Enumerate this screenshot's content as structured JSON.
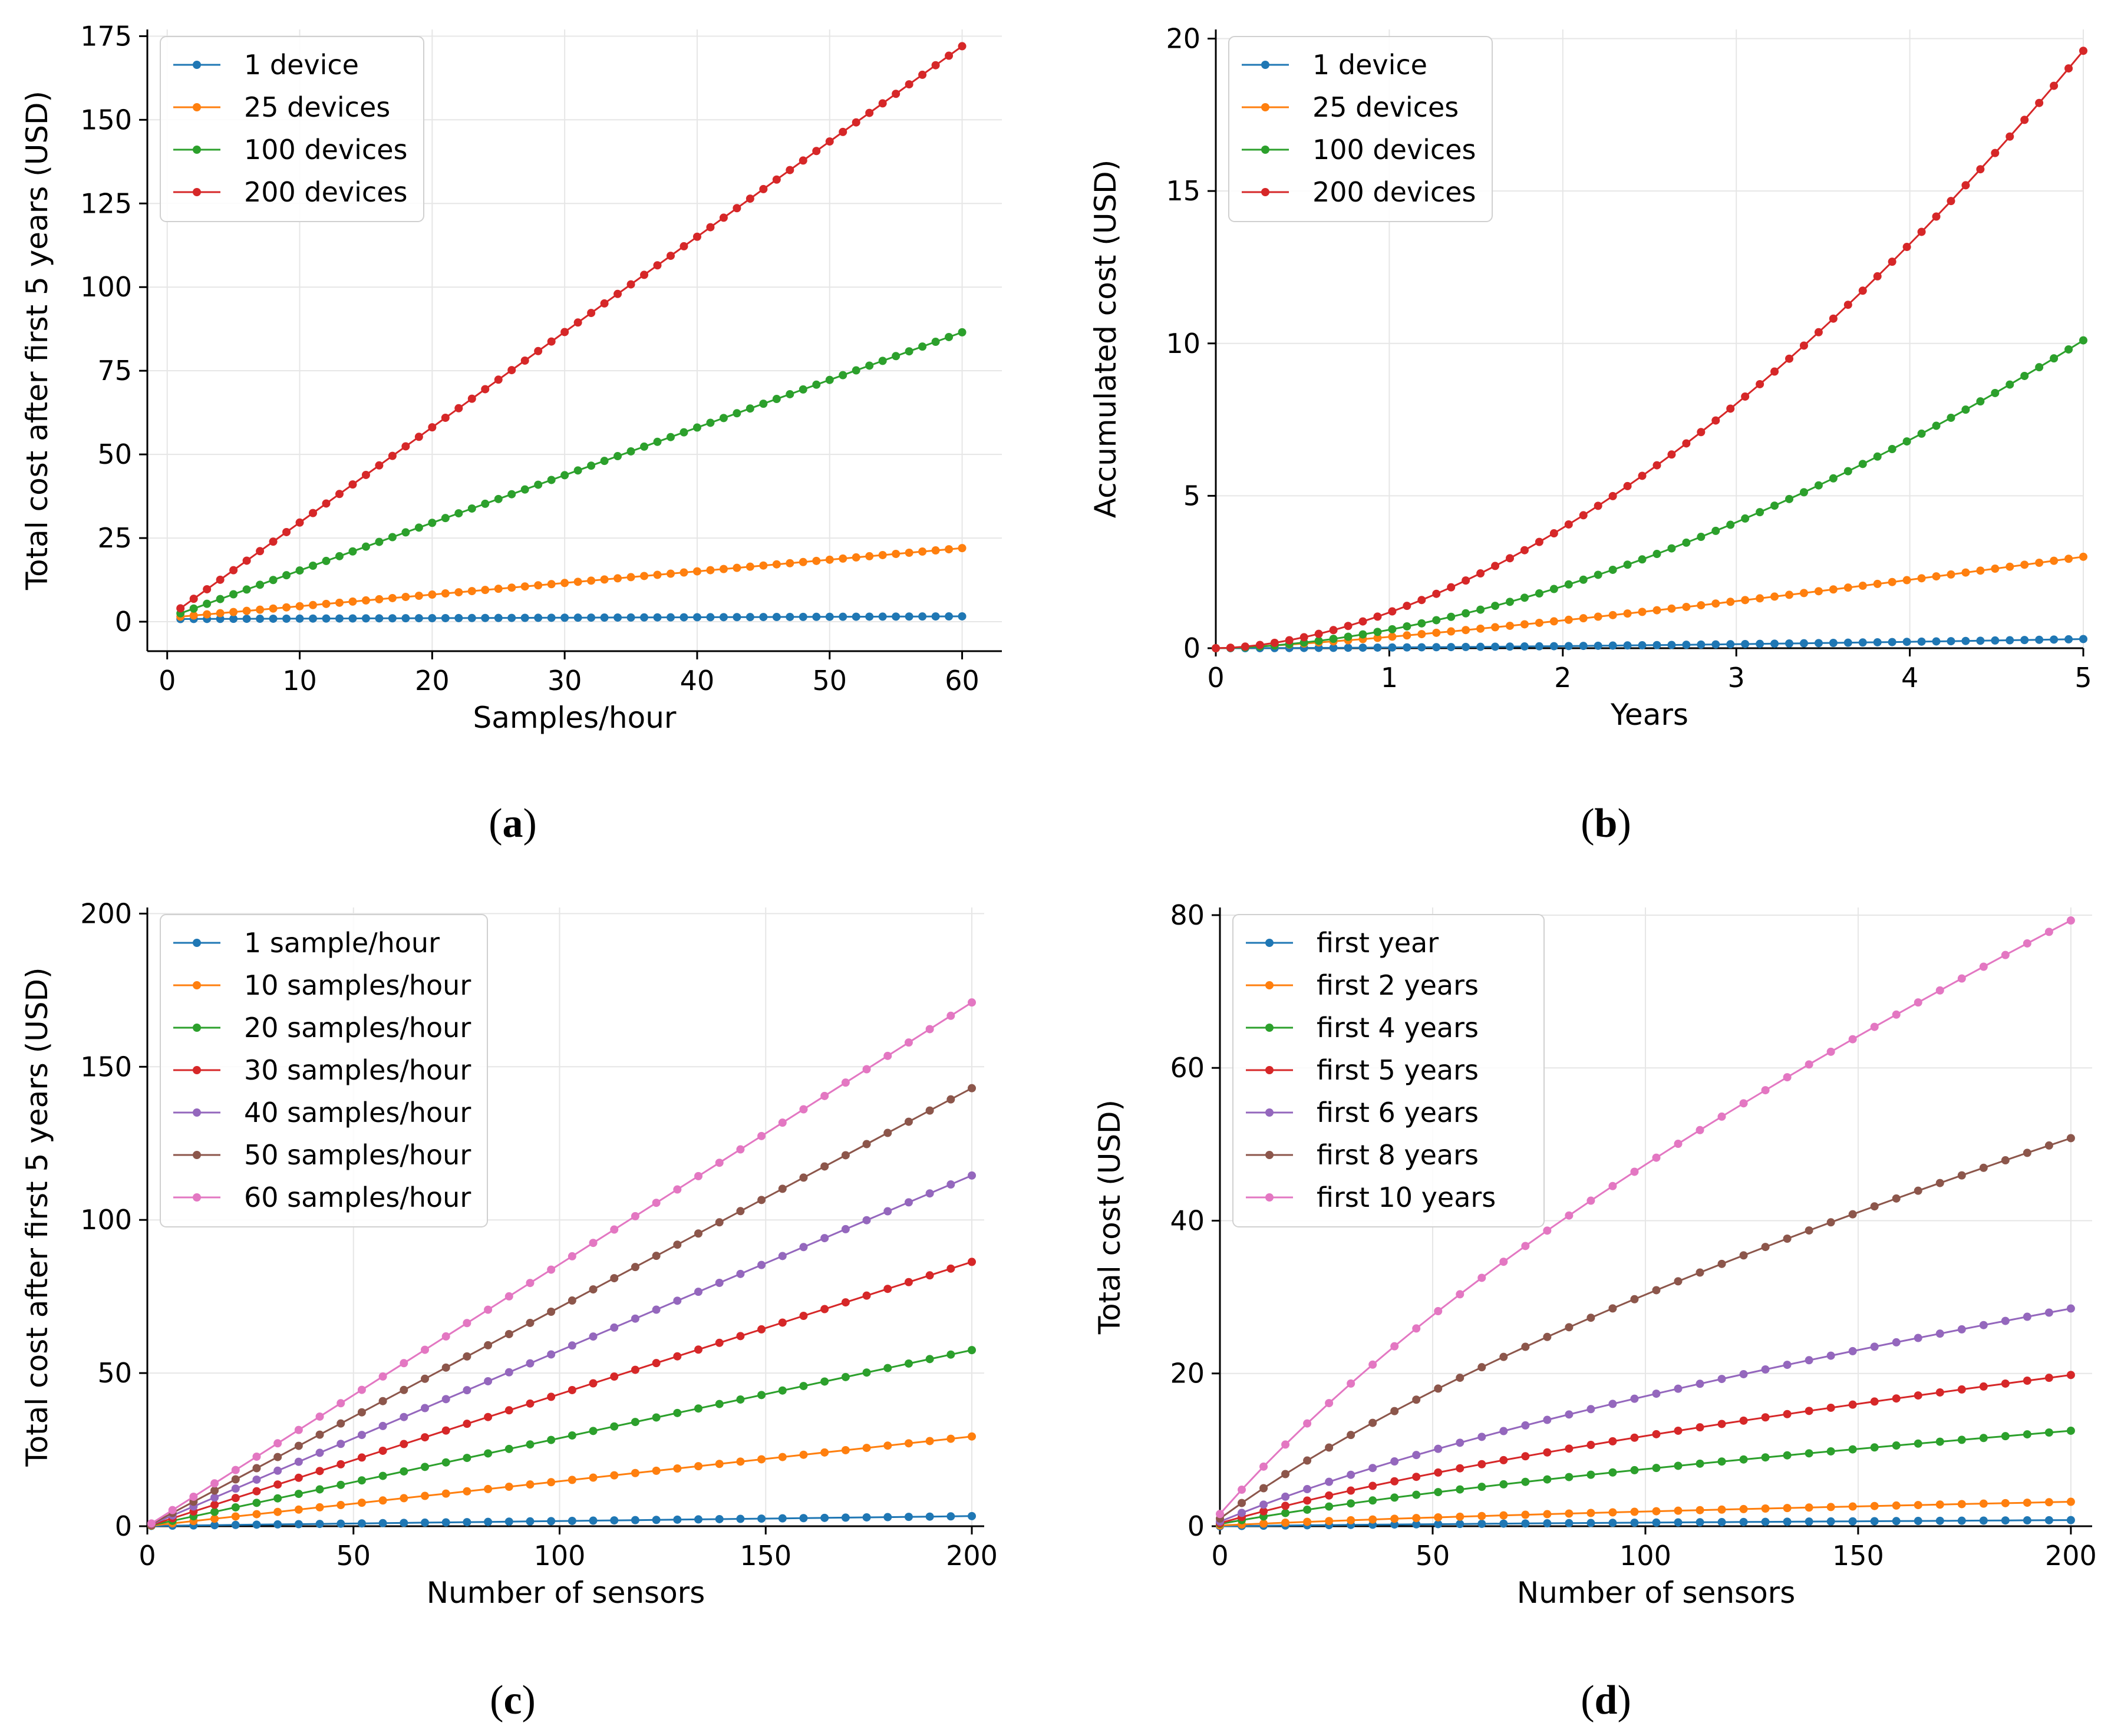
{
  "colors": {
    "blue": "#1f77b4",
    "orange": "#ff7f0e",
    "green": "#2ca02c",
    "red": "#d62728",
    "purple": "#9467bd",
    "brown": "#8c564b",
    "pink": "#e377c2"
  },
  "chart_data": [
    {
      "id": "a",
      "caption": "a",
      "type": "line",
      "xlabel": "Samples/hour",
      "ylabel": "Total cost after first 5 years (USD)",
      "xlim": [
        -1.5,
        63
      ],
      "ylim": [
        -8.8,
        177
      ],
      "xticks": [
        0,
        10,
        20,
        30,
        40,
        50,
        60
      ],
      "yticks": [
        0,
        25,
        50,
        75,
        100,
        125,
        150,
        175
      ],
      "x_range": [
        1,
        60
      ],
      "n_points": 60,
      "series": [
        {
          "name": "1 device",
          "color": "blue",
          "start": 0.8,
          "end": 1.6
        },
        {
          "name": "25 devices",
          "color": "orange",
          "start": 1.5,
          "end": 22
        },
        {
          "name": "100 devices",
          "color": "green",
          "start": 2.5,
          "end": 86.5
        },
        {
          "name": "200 devices",
          "color": "red",
          "start": 4,
          "end": 172
        }
      ],
      "legend": "upper-left"
    },
    {
      "id": "b",
      "caption": "b",
      "type": "line",
      "xlabel": "Years",
      "ylabel": "Accumulated cost (USD)",
      "xlim": [
        0,
        5
      ],
      "ylim": [
        0,
        20.3
      ],
      "xticks": [
        0,
        1,
        2,
        3,
        4,
        5
      ],
      "yticks": [
        0,
        5,
        10,
        15,
        20
      ],
      "x_range": [
        0,
        5
      ],
      "n_points": 60,
      "series": [
        {
          "name": "1 device",
          "color": "blue",
          "end": 0.3,
          "power": 1.6
        },
        {
          "name": "25 devices",
          "color": "orange",
          "end": 3.0,
          "power": 1.3
        },
        {
          "name": "100 devices",
          "color": "green",
          "end": 10.1,
          "power": 1.75
        },
        {
          "name": "200 devices",
          "color": "red",
          "end": 19.6,
          "power": 1.75
        }
      ],
      "legend": "upper-left"
    },
    {
      "id": "c",
      "caption": "c",
      "type": "line",
      "xlabel": "Number of sensors",
      "ylabel": "Total cost after first 5 years (USD)",
      "xlim": [
        0,
        203
      ],
      "ylim": [
        0,
        202
      ],
      "xticks": [
        0,
        50,
        100,
        150,
        200
      ],
      "yticks": [
        0,
        50,
        100,
        150,
        200
      ],
      "x_range": [
        1,
        200
      ],
      "n_points": 40,
      "series": [
        {
          "name": "1 sample/hour",
          "color": "blue",
          "start": 0.1,
          "end": 3.3
        },
        {
          "name": "10 samples/hour",
          "color": "orange",
          "start": 0.2,
          "end": 29.3
        },
        {
          "name": "20 samples/hour",
          "color": "green",
          "start": 0.3,
          "end": 57.5
        },
        {
          "name": "30 samples/hour",
          "color": "red",
          "start": 0.4,
          "end": 86.3
        },
        {
          "name": "40 samples/hour",
          "color": "purple",
          "start": 0.6,
          "end": 114.5
        },
        {
          "name": "50 samples/hour",
          "color": "brown",
          "start": 0.7,
          "end": 143
        },
        {
          "name": "60 samples/hour",
          "color": "pink",
          "start": 0.9,
          "end": 171
        }
      ],
      "legend": "upper-left"
    },
    {
      "id": "d",
      "caption": "d",
      "type": "line",
      "xlabel": "Number of sensors",
      "ylabel": "Total cost (USD)",
      "xlim": [
        0,
        205
      ],
      "ylim": [
        0,
        81
      ],
      "xticks": [
        0,
        50,
        100,
        150,
        200
      ],
      "yticks": [
        0,
        20,
        40,
        60,
        80
      ],
      "x_range": [
        0,
        200
      ],
      "n_points": 40,
      "series": [
        {
          "name": "first year",
          "color": "blue",
          "start": 0.0,
          "end": 0.8,
          "log": true
        },
        {
          "name": "first 2 years",
          "color": "orange",
          "start": 0.1,
          "end": 3.2,
          "log": true
        },
        {
          "name": "first 4 years",
          "color": "green",
          "start": 0.3,
          "end": 12.5,
          "log": true
        },
        {
          "name": "first 5 years",
          "color": "red",
          "start": 0.4,
          "end": 19.8,
          "log": true
        },
        {
          "name": "first 6 years",
          "color": "purple",
          "start": 0.6,
          "end": 28.5,
          "log": true
        },
        {
          "name": "first 8 years",
          "color": "brown",
          "start": 1.0,
          "end": 50.8,
          "log": true
        },
        {
          "name": "first 10 years",
          "color": "pink",
          "start": 1.6,
          "end": 79.3,
          "log": true
        }
      ],
      "legend": "upper-left"
    }
  ]
}
